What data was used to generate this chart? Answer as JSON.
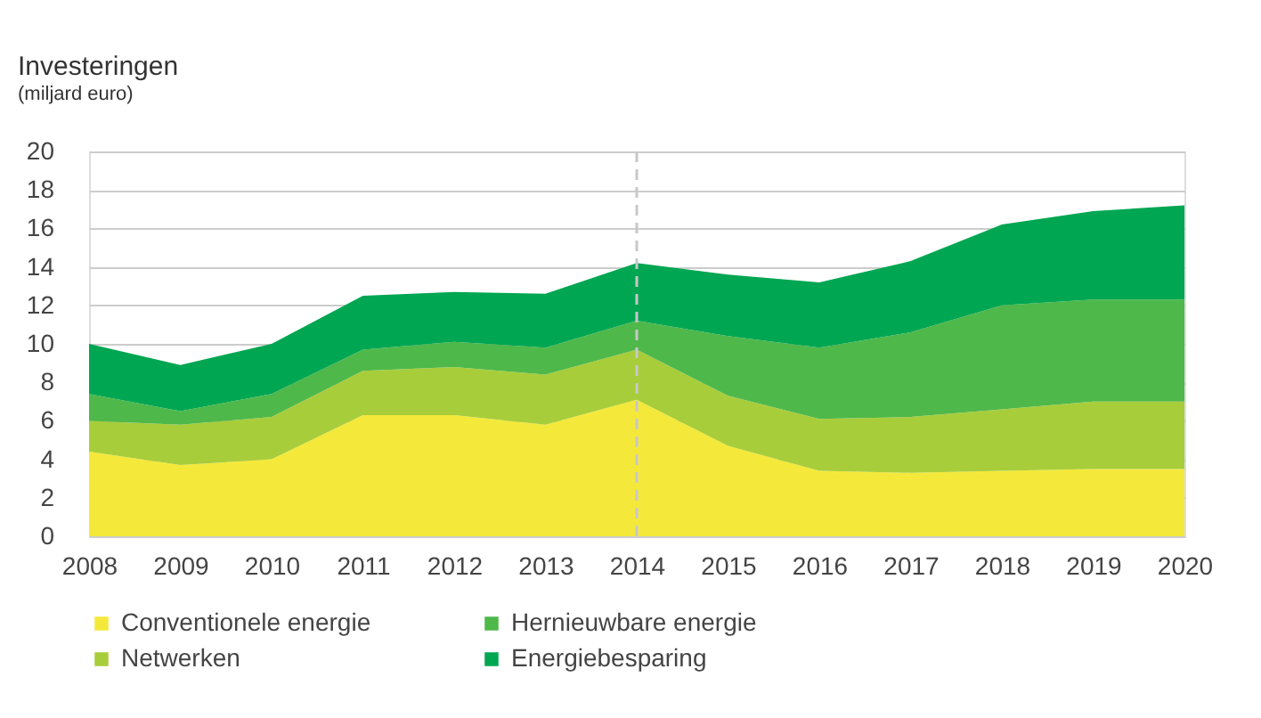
{
  "chart_data": {
    "type": "area",
    "title": "Investeringen",
    "subtitle": "(miljard euro)",
    "stacked": true,
    "x": [
      2008,
      2009,
      2010,
      2011,
      2012,
      2013,
      2014,
      2015,
      2016,
      2017,
      2018,
      2019,
      2020
    ],
    "series": [
      {
        "name": "Conventionele energie",
        "color": "#f4e93a",
        "values": [
          4.4,
          3.7,
          4.0,
          6.3,
          6.3,
          5.8,
          7.1,
          4.7,
          3.4,
          3.3,
          3.4,
          3.5,
          3.5
        ]
      },
      {
        "name": "Netwerken",
        "color": "#a8cd3a",
        "values": [
          1.6,
          2.1,
          2.2,
          2.3,
          2.5,
          2.6,
          2.6,
          2.6,
          2.7,
          2.9,
          3.2,
          3.5,
          3.5
        ]
      },
      {
        "name": "Hernieuwbare energie",
        "color": "#4fb84a",
        "values": [
          1.4,
          0.7,
          1.2,
          1.1,
          1.3,
          1.4,
          1.5,
          3.1,
          3.7,
          4.4,
          5.4,
          5.3,
          5.3
        ]
      },
      {
        "name": "Energiebesparing",
        "color": "#00a651",
        "values": [
          2.6,
          2.4,
          2.6,
          2.8,
          2.6,
          2.8,
          3.0,
          3.2,
          3.4,
          3.7,
          4.2,
          4.6,
          4.9
        ]
      }
    ],
    "xlim": [
      2008,
      2020
    ],
    "xticks": [
      2008,
      2009,
      2010,
      2011,
      2012,
      2013,
      2014,
      2015,
      2016,
      2017,
      2018,
      2019,
      2020
    ],
    "ylim": [
      0,
      20
    ],
    "yticks": [
      0,
      2,
      4,
      6,
      8,
      10,
      12,
      14,
      16,
      18,
      20
    ],
    "grid": "y",
    "legend": "bottom",
    "ref_lines": [
      {
        "axis": "x",
        "value": 2014,
        "color": "#c8c8c8",
        "line_style": "dashed"
      }
    ]
  }
}
